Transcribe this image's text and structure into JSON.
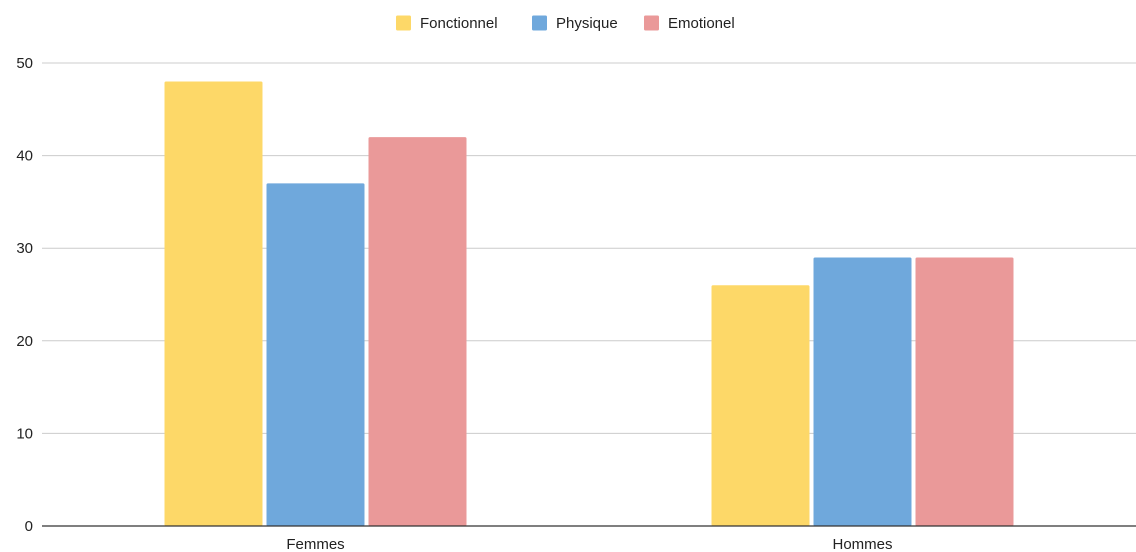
{
  "chart_data": {
    "type": "bar",
    "title": "",
    "xlabel": "",
    "ylabel": "",
    "categories": [
      "Femmes",
      "Hommes"
    ],
    "series": [
      {
        "name": "Fonctionnel",
        "values": [
          48,
          26
        ],
        "color": "#FDD868"
      },
      {
        "name": "Physique",
        "values": [
          37,
          29
        ],
        "color": "#6FA8DC"
      },
      {
        "name": "Emotionel",
        "values": [
          42,
          29
        ],
        "color": "#EA9999"
      }
    ],
    "ylim": [
      0,
      50
    ],
    "yticks": [
      "0",
      "10",
      "20",
      "30",
      "40",
      "50"
    ],
    "grid": true,
    "legend_position": "top-center"
  }
}
